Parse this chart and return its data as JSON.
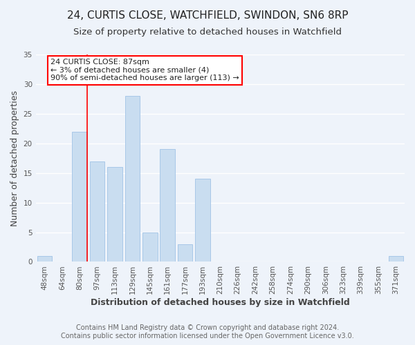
{
  "title": "24, CURTIS CLOSE, WATCHFIELD, SWINDON, SN6 8RP",
  "subtitle": "Size of property relative to detached houses in Watchfield",
  "xlabel": "Distribution of detached houses by size in Watchfield",
  "ylabel": "Number of detached properties",
  "bar_labels": [
    "48sqm",
    "64sqm",
    "80sqm",
    "97sqm",
    "113sqm",
    "129sqm",
    "145sqm",
    "161sqm",
    "177sqm",
    "193sqm",
    "210sqm",
    "226sqm",
    "242sqm",
    "258sqm",
    "274sqm",
    "290sqm",
    "306sqm",
    "323sqm",
    "339sqm",
    "355sqm",
    "371sqm"
  ],
  "bar_values": [
    1,
    0,
    22,
    17,
    16,
    28,
    5,
    19,
    3,
    14,
    0,
    0,
    0,
    0,
    0,
    0,
    0,
    0,
    0,
    0,
    1
  ],
  "bar_color": "#c9ddf0",
  "bar_edge_color": "#a8c8e8",
  "red_line_index": 2,
  "ylim": [
    0,
    35
  ],
  "annotation_text": "24 CURTIS CLOSE: 87sqm\n← 3% of detached houses are smaller (4)\n90% of semi-detached houses are larger (113) →",
  "footer_line1": "Contains HM Land Registry data © Crown copyright and database right 2024.",
  "footer_line2": "Contains public sector information licensed under the Open Government Licence v3.0.",
  "background_color": "#eef3fa",
  "title_fontsize": 11,
  "subtitle_fontsize": 9.5,
  "tick_fontsize": 7.5,
  "ylabel_fontsize": 9,
  "xlabel_fontsize": 9,
  "footer_fontsize": 7,
  "annot_fontsize": 8
}
